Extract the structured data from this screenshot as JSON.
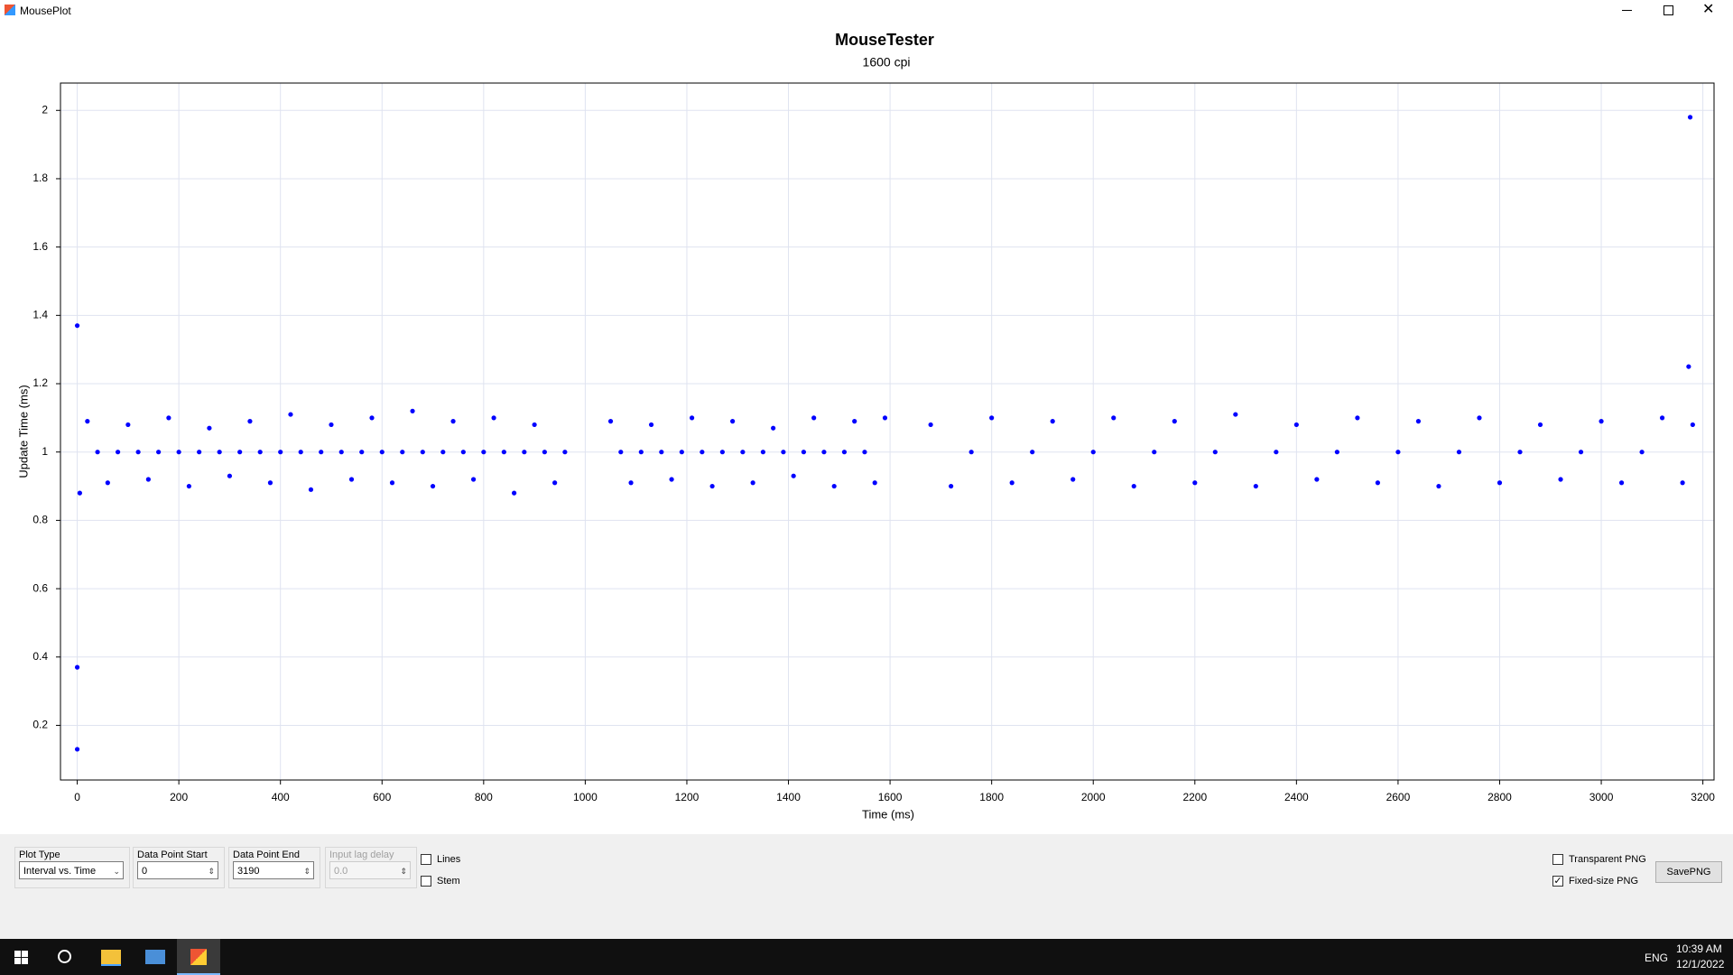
{
  "window": {
    "title": "MousePlot"
  },
  "chart_data": {
    "type": "scatter",
    "title": "MouseTester",
    "subtitle": "1600 cpi",
    "x_label": "Time (ms)",
    "y_label": "Update Time (ms)",
    "color": "#0000ff",
    "grid": true,
    "xlim": [
      -33,
      3222
    ],
    "ylim": [
      0.04,
      2.08
    ],
    "xticks": [
      0,
      200,
      400,
      600,
      800,
      1000,
      1200,
      1400,
      1600,
      1800,
      2000,
      2200,
      2400,
      2600,
      2800,
      3000,
      3200
    ],
    "yticks": [
      0.2,
      0.4,
      0.6,
      0.8,
      1,
      1.2,
      1.4,
      1.6,
      1.8,
      2
    ],
    "x": [
      0,
      0,
      0,
      5,
      3172,
      3175,
      3180,
      20,
      40,
      60,
      80,
      100,
      120,
      140,
      160,
      180,
      200,
      220,
      240,
      260,
      280,
      300,
      320,
      340,
      360,
      380,
      400,
      420,
      440,
      460,
      480,
      500,
      520,
      540,
      560,
      580,
      600,
      620,
      640,
      660,
      680,
      700,
      720,
      740,
      760,
      780,
      800,
      820,
      840,
      860,
      880,
      900,
      920,
      940,
      960,
      1050,
      1070,
      1090,
      1110,
      1130,
      1150,
      1170,
      1190,
      1210,
      1230,
      1250,
      1270,
      1290,
      1310,
      1330,
      1350,
      1370,
      1390,
      1410,
      1430,
      1450,
      1470,
      1490,
      1510,
      1530,
      1550,
      1570,
      1590,
      1680,
      1720,
      1760,
      1800,
      1840,
      1880,
      1920,
      1960,
      2000,
      2040,
      2080,
      2120,
      2160,
      2200,
      2240,
      2280,
      2320,
      2360,
      2400,
      2440,
      2480,
      2520,
      2560,
      2600,
      2640,
      2680,
      2720,
      2760,
      2800,
      2840,
      2880,
      2920,
      2960,
      3000,
      3040,
      3080,
      3120,
      3160
    ],
    "values": [
      1.37,
      0.37,
      0.13,
      0.88,
      1.25,
      1.98,
      1.08,
      1.09,
      1,
      0.91,
      1,
      1.08,
      1,
      0.92,
      1,
      1.1,
      1,
      0.9,
      1,
      1.07,
      1,
      0.93,
      1,
      1.09,
      1,
      0.91,
      1,
      1.11,
      1,
      0.89,
      1,
      1.08,
      1,
      0.92,
      1,
      1.1,
      1,
      0.91,
      1,
      1.12,
      1,
      0.9,
      1,
      1.09,
      1,
      0.92,
      1,
      1.1,
      1,
      0.88,
      1,
      1.08,
      1,
      0.91,
      1,
      1.09,
      1,
      0.91,
      1,
      1.08,
      1,
      0.92,
      1,
      1.1,
      1,
      0.9,
      1,
      1.09,
      1,
      0.91,
      1,
      1.07,
      1,
      0.93,
      1,
      1.1,
      1,
      0.9,
      1,
      1.09,
      1,
      0.91,
      1.1,
      1.08,
      0.9,
      1,
      1.1,
      0.91,
      1,
      1.09,
      0.92,
      1,
      1.1,
      0.9,
      1,
      1.09,
      0.91,
      1,
      1.11,
      0.9,
      1,
      1.08,
      0.92,
      1,
      1.1,
      0.91,
      1,
      1.09,
      0.9,
      1,
      1.1,
      0.91,
      1,
      1.08,
      0.92,
      1,
      1.09,
      0.91,
      1,
      1.1,
      0.91
    ]
  },
  "controls": {
    "plot_type": {
      "label": "Plot Type",
      "value": "Interval vs. Time"
    },
    "data_point_start": {
      "label": "Data Point Start",
      "value": "0"
    },
    "data_point_end": {
      "label": "Data Point End",
      "value": "3190"
    },
    "input_lag_delay": {
      "label": "Input lag delay",
      "value": "0.0"
    },
    "lines": {
      "label": "Lines",
      "checked": false
    },
    "stem": {
      "label": "Stem",
      "checked": false
    },
    "transparent_png": {
      "label": "Transparent PNG",
      "checked": false
    },
    "fixed_size_png": {
      "label": "Fixed-size PNG",
      "checked": true
    },
    "save_button": "SavePNG"
  },
  "taskbar": {
    "language": "ENG",
    "time": "10:39 AM",
    "date": "12/1/2022"
  }
}
